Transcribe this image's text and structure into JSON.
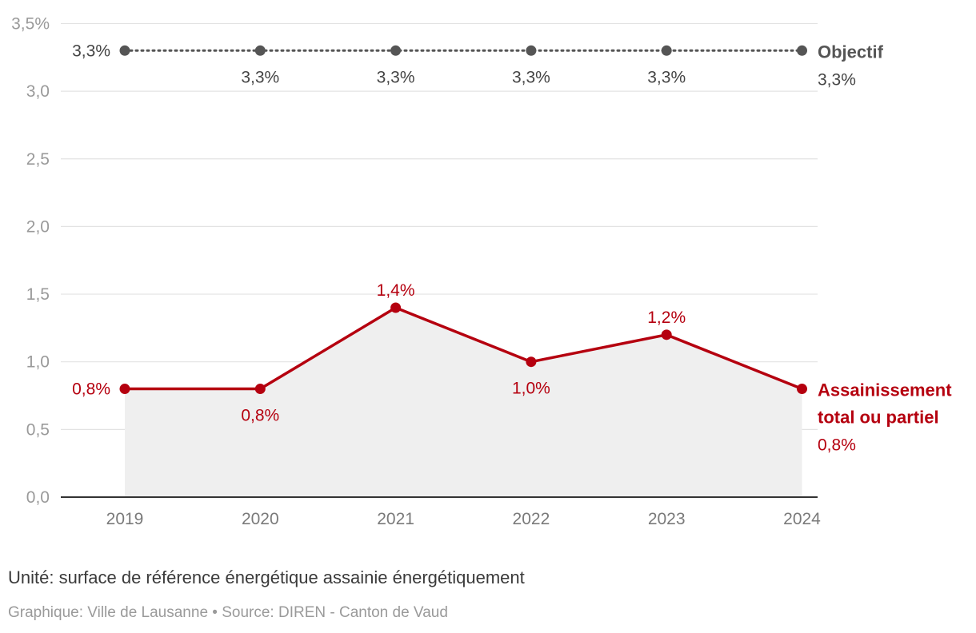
{
  "chart_data": {
    "type": "line",
    "categories": [
      "2019",
      "2020",
      "2021",
      "2022",
      "2023",
      "2024"
    ],
    "y_ticks": [
      "0,0",
      "0,5",
      "1,0",
      "1,5",
      "2,0",
      "2,5",
      "3,0",
      "3,5%"
    ],
    "ylim": [
      0,
      3.5
    ],
    "grid": true,
    "series": [
      {
        "name": "Objectif",
        "name_lines": [
          "Objectif"
        ],
        "end_value_label": "3,3%",
        "values": [
          3.3,
          3.3,
          3.3,
          3.3,
          3.3,
          3.3
        ],
        "labels": [
          "3,3%",
          "3,3%",
          "3,3%",
          "3,3%",
          "3,3%",
          ""
        ],
        "color": "#555555",
        "style": "dotted"
      },
      {
        "name": "Assainissement total ou partiel",
        "name_lines": [
          "Assainissement",
          "total ou partiel"
        ],
        "end_value_label": "0,8%",
        "values": [
          0.8,
          0.8,
          1.4,
          1.0,
          1.2,
          0.8
        ],
        "labels": [
          "0,8%",
          "0,8%",
          "1,4%",
          "1,0%",
          "1,2%",
          ""
        ],
        "color": "#b5000f",
        "style": "solid",
        "area_fill": "#efefef"
      }
    ]
  },
  "notes": {
    "unit": "Unité: surface de référence énergétique assainie énergétiquement",
    "source": "Graphique: Ville de Lausanne • Source: DIREN - Canton de Vaud"
  }
}
